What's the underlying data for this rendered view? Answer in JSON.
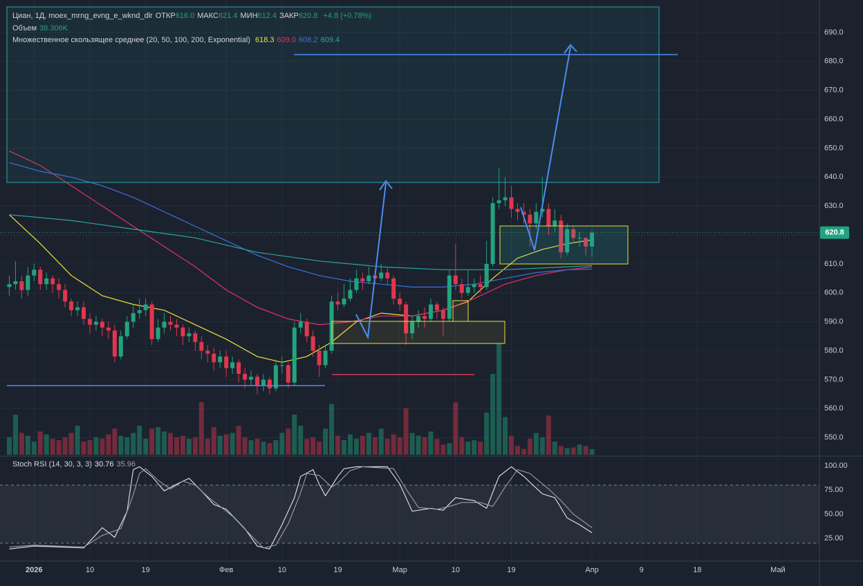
{
  "chart_data": [
    {
      "type": "candlestick",
      "title": "Циан, 1Д, moex_mrng_evng_e_wknd_dlr",
      "ohlc_legend": [
        {
          "label": "ОТКР",
          "value": "616.0"
        },
        {
          "label": "МАКС",
          "value": "621.4"
        },
        {
          "label": "МИН",
          "value": "612.4"
        },
        {
          "label": "ЗАКР",
          "value": "620.8"
        }
      ],
      "change": "+4.8 (+0.78%)",
      "up_color": "#22a37f",
      "down_color": "#e0364f",
      "open": [
        602,
        603,
        604,
        601,
        606,
        608,
        603,
        605,
        603,
        601,
        597,
        594,
        595,
        591,
        589,
        590,
        588,
        587,
        578,
        585,
        590,
        593,
        594,
        596,
        584,
        588,
        590,
        589,
        588,
        585,
        586,
        583,
        580,
        579,
        576,
        578,
        574,
        576,
        572,
        570,
        571,
        568,
        570,
        567,
        575,
        575,
        569,
        588,
        590,
        585,
        580,
        575,
        580,
        597,
        596,
        598,
        601,
        605,
        604,
        606,
        605,
        607,
        605,
        598,
        596,
        586,
        590,
        592,
        591,
        596,
        594,
        591,
        606,
        603,
        600,
        602,
        603,
        602,
        610,
        631,
        632,
        633,
        629,
        628,
        627,
        624,
        628,
        629,
        623,
        625,
        614,
        622,
        619,
        619,
        616.0
      ],
      "high": [
        606,
        611,
        606,
        609,
        610,
        609,
        607,
        606,
        605,
        603,
        598,
        597,
        597,
        593,
        592,
        591,
        590,
        589,
        587,
        592,
        596,
        598,
        598,
        597,
        591,
        593,
        592,
        591,
        589,
        588,
        587,
        585,
        582,
        581,
        580,
        580,
        578,
        577,
        574,
        573,
        572,
        572,
        571,
        577,
        578,
        576,
        590,
        593,
        591,
        587,
        582,
        582,
        599,
        600,
        603,
        605,
        608,
        607,
        609,
        608,
        610,
        609,
        606,
        600,
        597,
        592,
        594,
        595,
        598,
        597,
        595,
        608,
        617,
        605,
        608,
        605,
        606,
        618,
        633,
        643,
        640,
        637,
        631,
        631,
        629,
        631,
        640,
        631,
        629,
        627,
        624,
        623,
        621,
        619,
        621.4
      ],
      "low": [
        599,
        601,
        598,
        599,
        604,
        601,
        601,
        600,
        598,
        595,
        592,
        592,
        589,
        586,
        587,
        585,
        584,
        576,
        577,
        584,
        588,
        591,
        592,
        582,
        583,
        586,
        587,
        585,
        582,
        583,
        580,
        577,
        576,
        573,
        574,
        571,
        572,
        569,
        567,
        568,
        565,
        566,
        565,
        566,
        572,
        567,
        568,
        586,
        583,
        578,
        571,
        574,
        579,
        594,
        595,
        597,
        600,
        601,
        603,
        603,
        604,
        603,
        596,
        594,
        582,
        584,
        588,
        588,
        590,
        591,
        585,
        590,
        601,
        598,
        599,
        600,
        600,
        601,
        609,
        629,
        630,
        626,
        625,
        624,
        616,
        622,
        626,
        620,
        621,
        612,
        613,
        617,
        616,
        613,
        612.4
      ],
      "close": [
        603,
        604,
        601,
        606,
        608,
        603,
        605,
        603,
        601,
        597,
        594,
        595,
        591,
        589,
        590,
        588,
        587,
        578,
        585,
        590,
        593,
        594,
        596,
        584,
        588,
        590,
        589,
        588,
        585,
        586,
        583,
        580,
        579,
        576,
        578,
        574,
        576,
        572,
        570,
        571,
        568,
        570,
        567,
        575,
        575,
        569,
        588,
        590,
        585,
        580,
        575,
        580,
        597,
        596,
        598,
        601,
        605,
        604,
        606,
        605,
        607,
        605,
        598,
        596,
        586,
        590,
        592,
        591,
        596,
        594,
        591,
        606,
        603,
        600,
        602,
        603,
        602,
        610,
        631,
        632,
        633,
        629,
        628,
        627,
        624,
        628,
        629,
        623,
        625,
        614,
        622,
        619,
        619,
        616,
        620.8
      ],
      "xlim": [
        -1.5,
        130.7
      ],
      "xticks": [
        {
          "value": 4,
          "label": "2026"
        },
        {
          "value": 13,
          "label": "10"
        },
        {
          "value": 22,
          "label": "19"
        },
        {
          "value": 35,
          "label": "Фев"
        },
        {
          "value": 44,
          "label": "10"
        },
        {
          "value": 53,
          "label": "19"
        },
        {
          "value": 63,
          "label": "Мар"
        },
        {
          "value": 72,
          "label": "10"
        },
        {
          "value": 81,
          "label": "19"
        },
        {
          "value": 94,
          "label": "Апр"
        },
        {
          "value": 102,
          "label": "9"
        },
        {
          "value": 111,
          "label": "18"
        },
        {
          "value": 124,
          "label": "Май"
        }
      ],
      "ylim": [
        543.6,
        698.8
      ],
      "yticks": [
        {
          "value": 550,
          "label": "550.0"
        },
        {
          "value": 560,
          "label": "560.0"
        },
        {
          "value": 570,
          "label": "570.0"
        },
        {
          "value": 580,
          "label": "580.0"
        },
        {
          "value": 590,
          "label": "590.0"
        },
        {
          "value": 600,
          "label": "600.0"
        },
        {
          "value": 610,
          "label": "610.0"
        },
        {
          "value": 620,
          "label": "620.0"
        },
        {
          "value": 630,
          "label": "630.0"
        },
        {
          "value": 640,
          "label": "640.0"
        },
        {
          "value": 650,
          "label": "650.0"
        },
        {
          "value": 660,
          "label": "660.0"
        },
        {
          "value": 670,
          "label": "670.0"
        },
        {
          "value": 680,
          "label": "680.0"
        },
        {
          "value": 690,
          "label": "690.0"
        }
      ],
      "volume": {
        "title": "Объем",
        "label": "38.306K",
        "ylim": [
          0,
          800
        ],
        "values": [
          120,
          276,
          150,
          130,
          90,
          160,
          140,
          110,
          100,
          120,
          150,
          200,
          90,
          100,
          120,
          110,
          140,
          180,
          130,
          120,
          150,
          200,
          110,
          180,
          190,
          160,
          150,
          120,
          130,
          110,
          120,
          362,
          110,
          190,
          130,
          140,
          150,
          200,
          120,
          100,
          110,
          90,
          80,
          100,
          150,
          180,
          276,
          200,
          110,
          120,
          90,
          180,
          350,
          130,
          100,
          140,
          110,
          130,
          150,
          120,
          180,
          110,
          140,
          120,
          320,
          150,
          130,
          120,
          160,
          110,
          70,
          80,
          360,
          120,
          90,
          100,
          90,
          290,
          557,
          767,
          260,
          130,
          60,
          40,
          110,
          150,
          120,
          270,
          90,
          60,
          45,
          50,
          70,
          60,
          38.306
        ]
      },
      "ma": {
        "title": "Множественное скользящее среднее (20, 50, 100, 200, Exponential)",
        "value_labels": [
          "618.3",
          "609.0",
          "608.2",
          "609.4"
        ],
        "series": [
          {
            "color": "#f2e23c",
            "x": [
              0,
              5,
              10,
              15,
              20,
              25,
              30,
              35,
              40,
              44,
              48,
              52,
              56,
              60,
              65,
              70,
              74,
              78,
              82,
              86,
              90,
              94
            ],
            "values": [
              627,
              617,
              606,
              599,
              596,
              594,
              589,
              584,
              578,
              576,
              578,
              583,
              590,
              593,
              592,
              594,
              597,
              605,
              612,
              615,
              617,
              618.3
            ]
          },
          {
            "color": "#e5306b",
            "x": [
              0,
              5,
              10,
              15,
              20,
              25,
              30,
              35,
              40,
              45,
              50,
              55,
              60,
              65,
              70,
              75,
              80,
              85,
              90,
              94
            ],
            "values": [
              649,
              644,
              637,
              630,
              623,
              616,
              609,
              601,
              595,
              591,
              589,
              590,
              592,
              592,
              594,
              598,
              603,
              606,
              608,
              609
            ]
          },
          {
            "color": "#3f6fe0",
            "x": [
              0,
              5,
              10,
              15,
              20,
              25,
              30,
              35,
              40,
              45,
              50,
              55,
              60,
              65,
              70,
              75,
              80,
              85,
              90,
              94
            ],
            "values": [
              645,
              642,
              640,
              637,
              633,
              628,
              623,
              618,
              613,
              609,
              606,
              604,
              603,
              602,
              602,
              603,
              605,
              607,
              608,
              608.2
            ]
          },
          {
            "color": "#2aa6a6",
            "x": [
              0,
              10,
              20,
              30,
              40,
              50,
              55,
              60,
              70,
              80,
              90,
              94
            ],
            "values": [
              627,
              625,
              622,
              619,
              614,
              611,
              610,
              609,
              608,
              608,
              609,
              609.4
            ]
          }
        ]
      }
    },
    {
      "type": "line",
      "title": "Stoch RSI (14, 30, 3, 3)",
      "ylim": [
        1.4,
        108.6
      ],
      "yticks": [
        {
          "value": 25,
          "label": "25.00"
        },
        {
          "value": 50,
          "label": "50.00"
        },
        {
          "value": 75,
          "label": "75.00"
        },
        {
          "value": 100,
          "label": "100.00"
        }
      ],
      "bands": [
        20,
        80
      ],
      "series": [
        {
          "color": "#e6e6e6",
          "x": [
            0,
            4,
            8,
            12,
            15,
            17,
            19,
            20,
            21,
            23,
            25,
            27,
            29,
            31,
            33,
            35,
            38,
            40,
            42,
            44,
            46,
            47,
            49,
            50,
            51,
            53,
            54,
            56,
            61,
            63,
            65,
            68,
            70,
            72,
            75,
            77,
            79,
            81,
            83,
            86,
            88,
            90,
            92,
            94
          ],
          "values": [
            14,
            17,
            16,
            15,
            36,
            26,
            53,
            96,
            99,
            89,
            74,
            81,
            87,
            74,
            60,
            55,
            35,
            17,
            14,
            39,
            67,
            89,
            96,
            81,
            69,
            89,
            97,
            99,
            99,
            81,
            53,
            56,
            54,
            67,
            64,
            56,
            89,
            99,
            89,
            71,
            67,
            46,
            39,
            30.76
          ]
        },
        {
          "color": "#9aa0aa",
          "x": [
            0,
            4,
            8,
            12,
            15,
            18,
            20,
            21,
            22,
            24,
            26,
            28,
            30,
            32,
            34,
            36,
            39,
            41,
            43,
            45,
            47,
            48,
            50,
            52,
            53,
            55,
            57,
            62,
            64,
            66,
            69,
            71,
            73,
            76,
            78,
            80,
            82,
            84,
            87,
            89,
            91,
            94
          ],
          "values": [
            16,
            18,
            17,
            16,
            28,
            35,
            70,
            92,
            97,
            85,
            76,
            84,
            80,
            68,
            58,
            48,
            28,
            15,
            18,
            40,
            72,
            92,
            90,
            78,
            82,
            95,
            99,
            97,
            76,
            57,
            55,
            58,
            62,
            62,
            58,
            78,
            96,
            92,
            76,
            64,
            50,
            35.96
          ]
        }
      ]
    }
  ]
}
